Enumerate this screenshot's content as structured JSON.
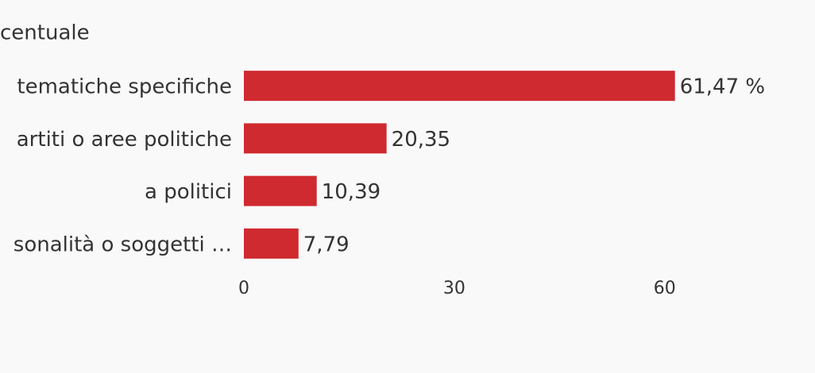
{
  "chart_data": {
    "type": "hbar",
    "title": "centuale",
    "categories": [
      "tematiche specifiche",
      "artiti o aree politiche",
      "a politici",
      "sonalità o soggetti …"
    ],
    "values": [
      61.47,
      20.35,
      10.39,
      7.79
    ],
    "value_labels": [
      "61,47 %",
      "20,35",
      "10,39",
      "7,79"
    ],
    "color": "#cf2a30",
    "xlim": [
      0,
      70
    ],
    "xticks": [
      0,
      30,
      60
    ],
    "grid": false
  }
}
